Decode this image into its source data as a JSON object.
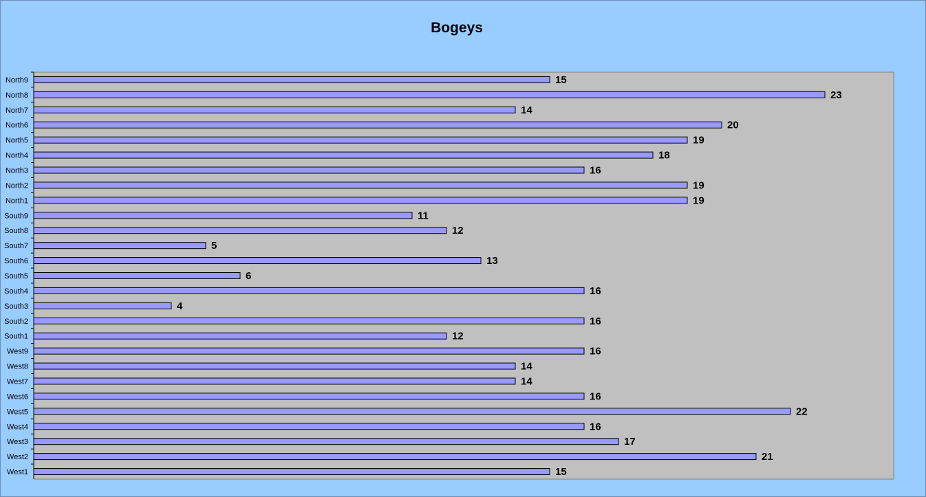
{
  "colors": {
    "background": "#99ccff",
    "plot_area": "#c0c0c0",
    "bar_fill": "#9999ff",
    "bar_stroke": "#000000"
  },
  "chart_data": {
    "type": "bar",
    "orientation": "horizontal",
    "title": "Bogeys",
    "xlabel": "",
    "ylabel": "",
    "xlim": [
      0,
      25
    ],
    "grid": false,
    "legend": "none",
    "categories": [
      "North9",
      "North8",
      "North7",
      "North6",
      "North5",
      "North4",
      "North3",
      "North2",
      "North1",
      "South9",
      "South8",
      "South7",
      "South6",
      "South5",
      "South4",
      "South3",
      "South2",
      "South1",
      "West9",
      "West8",
      "West7",
      "West6",
      "West5",
      "West4",
      "West3",
      "West2",
      "West1"
    ],
    "values": [
      15,
      23,
      14,
      20,
      19,
      18,
      16,
      19,
      19,
      11,
      12,
      5,
      13,
      6,
      16,
      4,
      16,
      12,
      16,
      14,
      14,
      16,
      22,
      16,
      17,
      21,
      15
    ]
  }
}
